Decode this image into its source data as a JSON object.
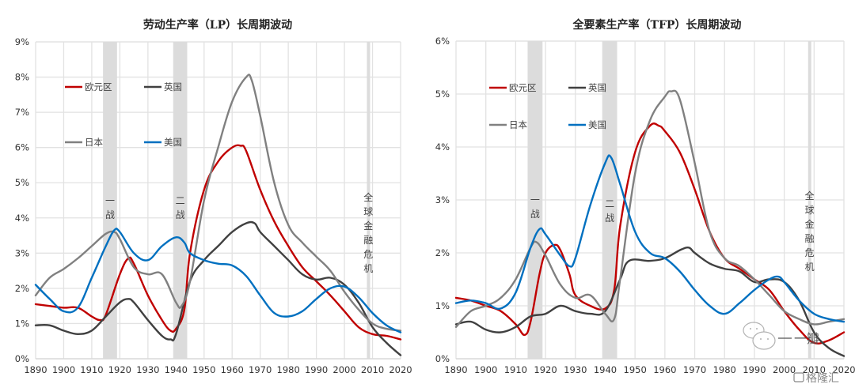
{
  "chart_data": [
    {
      "type": "line",
      "title": "劳动生产率（LP）长周期波动",
      "xlabel": "",
      "ylabel": "",
      "xlim": [
        1890,
        2020
      ],
      "ylim": [
        0,
        9
      ],
      "x_ticks": [
        "1890",
        "1900",
        "1910",
        "1920",
        "1930",
        "1940",
        "1950",
        "1960",
        "1970",
        "1980",
        "1990",
        "2000",
        "2010",
        "2020"
      ],
      "y_ticks": [
        "0%",
        "1%",
        "2%",
        "3%",
        "4%",
        "5%",
        "6%",
        "7%",
        "8%",
        "9%"
      ],
      "grid": true,
      "legend_position": "top-left",
      "bands": [
        {
          "label": "一战",
          "from": 1914,
          "to": 1919
        },
        {
          "label": "二战",
          "from": 1939,
          "to": 1944
        },
        {
          "label": "全球金融危机",
          "from": 2008,
          "to": 2009
        }
      ],
      "series": [
        {
          "name": "欧元区",
          "color": "#c00000",
          "x": [
            1890,
            1895,
            1900,
            1905,
            1910,
            1913,
            1915,
            1920,
            1923,
            1925,
            1930,
            1935,
            1938,
            1940,
            1943,
            1945,
            1950,
            1955,
            1960,
            1963,
            1965,
            1970,
            1975,
            1980,
            1985,
            1990,
            1995,
            2000,
            2005,
            2010,
            2015,
            2020
          ],
          "y": [
            1.55,
            1.5,
            1.45,
            1.45,
            1.2,
            1.1,
            1.25,
            2.4,
            2.85,
            2.7,
            1.8,
            1.1,
            0.8,
            0.85,
            1.4,
            3.0,
            4.8,
            5.6,
            6.0,
            6.05,
            5.9,
            4.8,
            3.9,
            3.2,
            2.6,
            2.2,
            1.8,
            1.35,
            0.9,
            0.7,
            0.65,
            0.55
          ]
        },
        {
          "name": "英国",
          "color": "#404040",
          "x": [
            1890,
            1895,
            1900,
            1905,
            1910,
            1915,
            1920,
            1923,
            1925,
            1930,
            1935,
            1938,
            1940,
            1945,
            1950,
            1955,
            1960,
            1965,
            1968,
            1970,
            1975,
            1980,
            1985,
            1990,
            1995,
            2000,
            2005,
            2010,
            2015,
            2020
          ],
          "y": [
            0.95,
            0.95,
            0.8,
            0.7,
            0.8,
            1.2,
            1.6,
            1.7,
            1.6,
            1.1,
            0.65,
            0.55,
            0.7,
            2.2,
            2.8,
            3.2,
            3.6,
            3.85,
            3.85,
            3.6,
            3.2,
            2.8,
            2.4,
            2.25,
            2.3,
            2.1,
            1.6,
            0.9,
            0.45,
            0.1
          ]
        },
        {
          "name": "日本",
          "color": "#808080",
          "x": [
            1890,
            1895,
            1900,
            1905,
            1910,
            1915,
            1918,
            1920,
            1925,
            1930,
            1935,
            1940,
            1942,
            1945,
            1950,
            1955,
            1960,
            1965,
            1967,
            1970,
            1975,
            1980,
            1985,
            1990,
            1995,
            2000,
            2005,
            2010,
            2015,
            2020
          ],
          "y": [
            1.8,
            2.3,
            2.55,
            2.85,
            3.2,
            3.55,
            3.6,
            3.4,
            2.6,
            2.4,
            2.4,
            1.6,
            1.5,
            2.2,
            4.5,
            6.0,
            7.3,
            8.0,
            7.9,
            6.9,
            5.0,
            3.8,
            3.3,
            2.9,
            2.5,
            1.9,
            1.4,
            1.0,
            0.85,
            0.8
          ]
        },
        {
          "name": "美国",
          "color": "#0070c0",
          "x": [
            1890,
            1895,
            1900,
            1905,
            1910,
            1915,
            1918,
            1920,
            1925,
            1930,
            1935,
            1940,
            1943,
            1945,
            1950,
            1955,
            1960,
            1965,
            1970,
            1975,
            1980,
            1985,
            1990,
            1995,
            2000,
            2005,
            2010,
            2015,
            2020
          ],
          "y": [
            2.1,
            1.7,
            1.35,
            1.45,
            2.3,
            3.2,
            3.65,
            3.6,
            3.0,
            2.8,
            3.2,
            3.45,
            3.3,
            3.0,
            2.8,
            2.7,
            2.65,
            2.35,
            1.8,
            1.3,
            1.2,
            1.35,
            1.7,
            2.0,
            2.05,
            1.75,
            1.3,
            0.95,
            0.75
          ]
        }
      ]
    },
    {
      "type": "line",
      "title": "全要素生产率（TFP）长周期波动",
      "xlabel": "",
      "ylabel": "",
      "xlim": [
        1890,
        2020
      ],
      "ylim": [
        0,
        6
      ],
      "x_ticks": [
        "1890",
        "1900",
        "1910",
        "1920",
        "1930",
        "1940",
        "1950",
        "1960",
        "1970",
        "1980",
        "1990",
        "2000",
        "2010",
        "2020"
      ],
      "y_ticks": [
        "0%",
        "1%",
        "2%",
        "3%",
        "4%",
        "5%",
        "6%"
      ],
      "grid": true,
      "legend_position": "top-left",
      "bands": [
        {
          "label": "一战",
          "from": 1914,
          "to": 1919
        },
        {
          "label": "二战",
          "from": 1939,
          "to": 1944
        },
        {
          "label": "全球金融危机",
          "from": 2008,
          "to": 2009
        }
      ],
      "series": [
        {
          "name": "欧元区",
          "color": "#c00000",
          "x": [
            1890,
            1895,
            1900,
            1905,
            1910,
            1913,
            1915,
            1918,
            1920,
            1923,
            1925,
            1928,
            1930,
            1935,
            1940,
            1943,
            1945,
            1950,
            1955,
            1958,
            1960,
            1965,
            1970,
            1975,
            1980,
            1985,
            1990,
            1995,
            2000,
            2005,
            2010,
            2015,
            2020
          ],
          "y": [
            1.15,
            1.1,
            1.0,
            0.9,
            0.65,
            0.45,
            0.7,
            1.6,
            2.0,
            2.15,
            2.05,
            1.6,
            1.2,
            1.0,
            0.95,
            1.3,
            2.5,
            3.9,
            4.4,
            4.4,
            4.3,
            3.9,
            3.2,
            2.4,
            1.9,
            1.7,
            1.5,
            1.3,
            0.9,
            0.55,
            0.3,
            0.35,
            0.5
          ]
        },
        {
          "name": "英国",
          "color": "#404040",
          "x": [
            1890,
            1895,
            1900,
            1905,
            1910,
            1915,
            1920,
            1925,
            1930,
            1935,
            1940,
            1945,
            1948,
            1955,
            1960,
            1965,
            1968,
            1970,
            1975,
            1980,
            1985,
            1990,
            1995,
            2000,
            2005,
            2010,
            2015,
            2020
          ],
          "y": [
            0.65,
            0.7,
            0.55,
            0.5,
            0.6,
            0.8,
            0.85,
            1.0,
            0.9,
            0.85,
            0.9,
            1.5,
            1.85,
            1.85,
            1.9,
            2.05,
            2.1,
            2.0,
            1.8,
            1.7,
            1.65,
            1.45,
            1.5,
            1.45,
            1.1,
            0.5,
            0.2,
            0.05
          ]
        },
        {
          "name": "日本",
          "color": "#808080",
          "x": [
            1890,
            1895,
            1900,
            1905,
            1910,
            1915,
            1917,
            1920,
            1925,
            1930,
            1935,
            1940,
            1943,
            1945,
            1950,
            1955,
            1960,
            1962,
            1965,
            1970,
            1975,
            1980,
            1985,
            1990,
            1995,
            2000,
            2005,
            2010,
            2015,
            2020
          ],
          "y": [
            0.6,
            0.9,
            1.0,
            1.15,
            1.5,
            2.1,
            2.2,
            1.95,
            1.4,
            1.15,
            1.2,
            0.85,
            0.75,
            1.5,
            3.5,
            4.5,
            4.95,
            5.05,
            4.9,
            3.7,
            2.4,
            1.9,
            1.75,
            1.5,
            1.2,
            0.9,
            0.75,
            0.65,
            0.7,
            0.75
          ]
        },
        {
          "name": "美国",
          "color": "#0070c0",
          "x": [
            1890,
            1895,
            1900,
            1905,
            1910,
            1915,
            1918,
            1920,
            1925,
            1928,
            1930,
            1935,
            1940,
            1942,
            1945,
            1950,
            1955,
            1960,
            1965,
            1970,
            1975,
            1980,
            1985,
            1990,
            1995,
            1998,
            2000,
            2005,
            2010,
            2015,
            2020
          ],
          "y": [
            1.05,
            1.1,
            1.05,
            0.95,
            1.25,
            2.1,
            2.45,
            2.35,
            1.95,
            1.75,
            1.9,
            2.9,
            3.7,
            3.8,
            3.3,
            2.4,
            2.0,
            1.9,
            1.65,
            1.3,
            1.0,
            0.85,
            1.05,
            1.3,
            1.5,
            1.55,
            1.45,
            1.1,
            0.85,
            0.75,
            0.7
          ]
        }
      ]
    }
  ],
  "watermark": {
    "icon": "wechat-icon",
    "text": "一瓣",
    "source_text": "格隆汇"
  }
}
